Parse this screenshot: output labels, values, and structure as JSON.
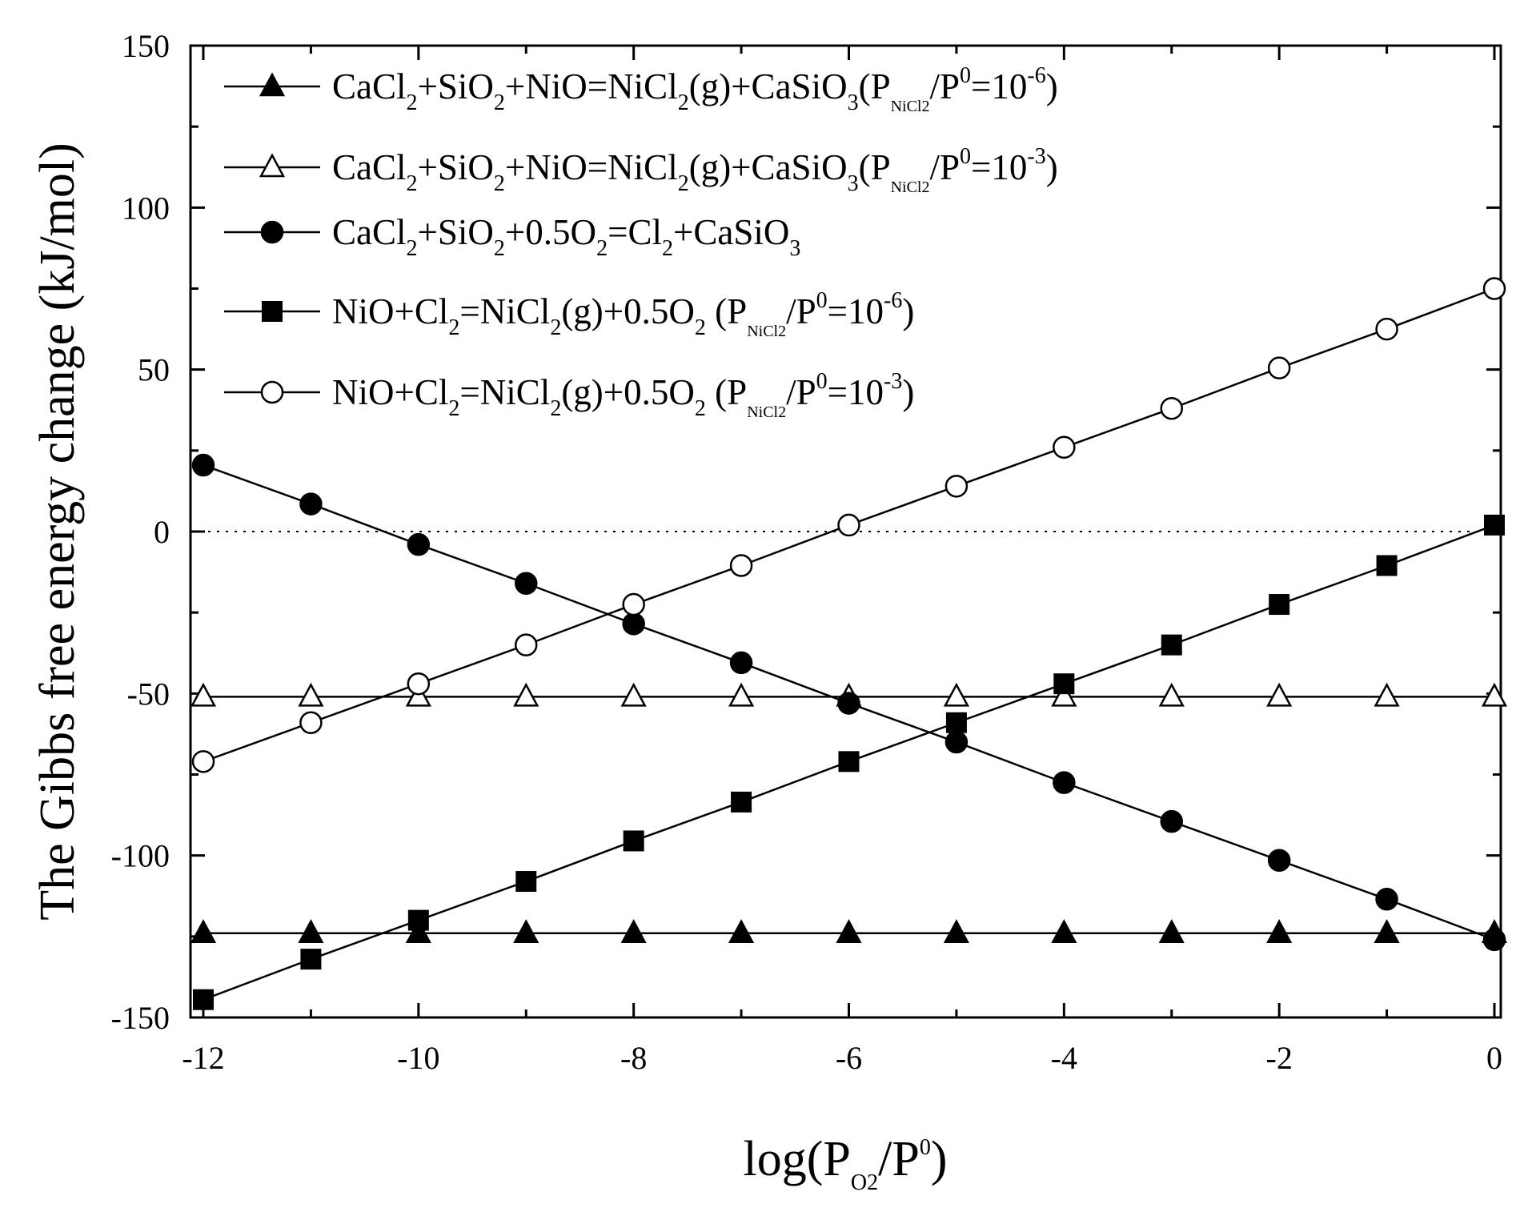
{
  "chart_data": {
    "type": "line",
    "ylabel": "The Gibbs free energy change (kJ/mol)",
    "xlabel": "log(P O2/P0)",
    "xlim": [
      -12,
      0
    ],
    "ylim": [
      -150,
      150
    ],
    "x_ticks": [
      -12,
      -10,
      -8,
      -6,
      -4,
      -2,
      0
    ],
    "y_ticks": [
      -150,
      -100,
      -50,
      0,
      50,
      100,
      150
    ],
    "x_tick_labels": [
      "-12",
      "-10",
      "-8",
      "-6",
      "-4",
      "-2",
      "0"
    ],
    "y_tick_labels": [
      "-150",
      "-100",
      "-50",
      "0",
      "50",
      "100",
      "150"
    ],
    "zero_reference_line": true,
    "legend_position": "top-left",
    "x": [
      -12,
      -11,
      -10,
      -9,
      -8,
      -7,
      -6,
      -5,
      -4,
      -3,
      -2,
      -1,
      0
    ],
    "series": [
      {
        "name": "CaCl2+SiO2+NiO=NiCl2(g)+CaSiO3(PNiCl2/P0=10-6)",
        "marker": "filled-triangle",
        "values": [
          -124,
          -124,
          -124,
          -124,
          -124,
          -124,
          -124,
          -124,
          -124,
          -124,
          -124,
          -124,
          -124
        ]
      },
      {
        "name": "CaCl2+SiO2+NiO=NiCl2(g)+CaSiO3(PNiCl2/P0=10-3)",
        "marker": "open-triangle",
        "values": [
          -51,
          -51,
          -51,
          -51,
          -51,
          -51,
          -51,
          -51,
          -51,
          -51,
          -51,
          -51,
          -51
        ]
      },
      {
        "name": "CaCl2+SiO2+0.5O2=Cl2+CaSiO3",
        "marker": "filled-circle",
        "values": [
          20.5,
          8.5,
          -4,
          -16,
          -28.5,
          -40.5,
          -53,
          -65,
          -77.5,
          -89.5,
          -101.5,
          -113.5,
          -126
        ]
      },
      {
        "name": "NiO+Cl2=NiCl2(g)+0.5O2 (PNiCl2/P0=10-6)",
        "marker": "filled-square",
        "values": [
          -144.5,
          -132,
          -120,
          -108,
          -95.5,
          -83.5,
          -71,
          -59,
          -47,
          -35,
          -22.5,
          -10.5,
          2
        ]
      },
      {
        "name": "NiO+Cl2=NiCl2(g)+0.5O2 (PNiCl2/P0=10-3)",
        "marker": "open-circle",
        "values": [
          -71,
          -59,
          -47,
          -35,
          -22.5,
          -10.5,
          2,
          14,
          26,
          38,
          50.5,
          62.5,
          75
        ]
      }
    ],
    "legend": [
      {
        "main": [
          "CaCl",
          "2",
          "+SiO",
          "2",
          "+NiO=NiCl",
          "2",
          "(g)+CaSiO",
          "3",
          "(P"
        ],
        "p_sub": "NiCl2",
        "tail": "/P",
        "p0": "0",
        "eq": "=10",
        "exp": "-6",
        "close": ")"
      },
      {
        "main": [
          "CaCl",
          "2",
          "+SiO",
          "2",
          "+NiO=NiCl",
          "2",
          "(g)+CaSiO",
          "3",
          "(P"
        ],
        "p_sub": "NiCl2",
        "tail": "/P",
        "p0": "0",
        "eq": "=10",
        "exp": "-3",
        "close": ")"
      },
      {
        "main": [
          "CaCl",
          "2",
          "+SiO",
          "2",
          "+0.5O",
          "2",
          "=Cl",
          "2",
          "+CaSiO",
          "3"
        ]
      },
      {
        "main": [
          "NiO+Cl",
          "2",
          "=NiCl",
          "2",
          "(g)+0.5O",
          "2",
          " (P"
        ],
        "p_sub": "NiCl2",
        "tail": "/P",
        "p0": "0",
        "eq": "=10",
        "exp": "-6",
        "close": ")"
      },
      {
        "main": [
          "NiO+Cl",
          "2",
          "=NiCl",
          "2",
          "(g)+0.5O",
          "2",
          " (P"
        ],
        "p_sub": "NiCl2",
        "tail": "/P",
        "p0": "0",
        "eq": "=10",
        "exp": "-3",
        "close": ")"
      }
    ],
    "xlabel_parts": {
      "pre": "log(P",
      "sub": "O2",
      "mid": "/P",
      "sup": "0",
      "post": ")"
    }
  }
}
